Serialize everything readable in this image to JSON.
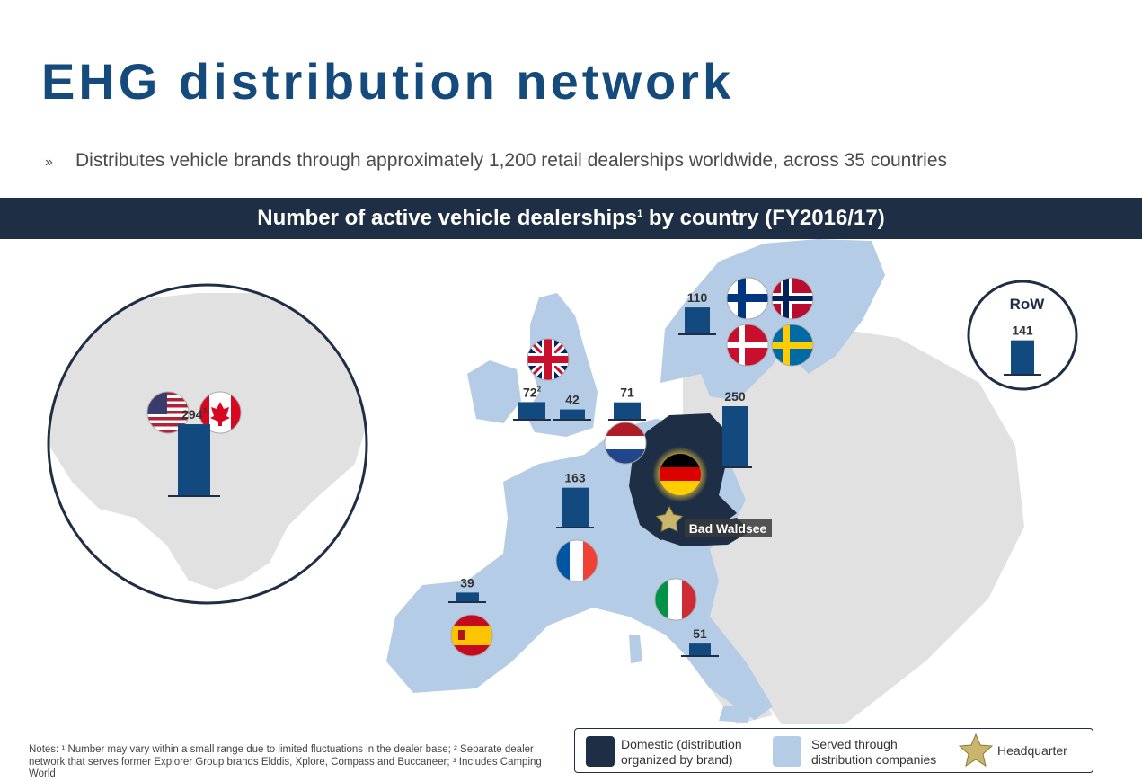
{
  "title": "EHG distribution network",
  "bullet": {
    "mark": "»",
    "text": "Distributes vehicle brands through approximately 1,200 retail dealerships worldwide, across 35 countries"
  },
  "banner": {
    "text": "Number of active vehicle dealerships",
    "sup": "1",
    "suffix": " by country (FY2016/17)"
  },
  "colors": {
    "brand_blue": "#144a7c",
    "banner_dark": "#1d2e45",
    "bar": "#124a80",
    "domestic": "#1d2e45",
    "served": "#b5cce6",
    "land": "#e1e1e1",
    "star": "#c9b56c"
  },
  "chart_data": {
    "type": "bar",
    "title": "Number of active vehicle dealerships by country (FY2016/17)",
    "categories": [
      "North America",
      "United Kingdom",
      "Ireland",
      "Netherlands",
      "Nordics",
      "Germany",
      "France",
      "Spain",
      "Italy",
      "RoW"
    ],
    "values": [
      294,
      72,
      42,
      71,
      110,
      250,
      163,
      39,
      51,
      141
    ],
    "labels": [
      "294",
      "72",
      "42",
      "71",
      "110",
      "250",
      "163",
      "39",
      "51",
      "141"
    ],
    "label_sups": [
      "3",
      "2",
      "",
      "",
      "",
      "",
      "",
      "",
      "",
      ""
    ],
    "flags": {
      "north_america": [
        "us-flag-icon",
        "canada-flag-icon"
      ],
      "united_kingdom": [
        "uk-flag-icon"
      ],
      "netherlands": [
        "netherlands-flag-icon"
      ],
      "nordics": [
        "finland-flag-icon",
        "norway-flag-icon",
        "denmark-flag-icon",
        "sweden-flag-icon"
      ],
      "germany": [
        "germany-flag-icon"
      ],
      "france": [
        "france-flag-icon"
      ],
      "spain": [
        "spain-flag-icon"
      ],
      "italy": [
        "italy-flag-icon"
      ]
    },
    "row_label": "RoW",
    "headquarter_label": "Bad Waldsee",
    "grid": false
  },
  "legend": {
    "domestic": "Domestic (distribution\norganized by brand)",
    "served": "Served through\ndistribution companies",
    "headquarter": "Headquarter"
  },
  "notes": "Notes: ¹ Number may vary within a small range due to limited fluctuations in the dealer base; ² Separate dealer network that serves former Explorer Group brands Elddis, Xplore, Compass and Buccaneer; ³ Includes Camping World"
}
